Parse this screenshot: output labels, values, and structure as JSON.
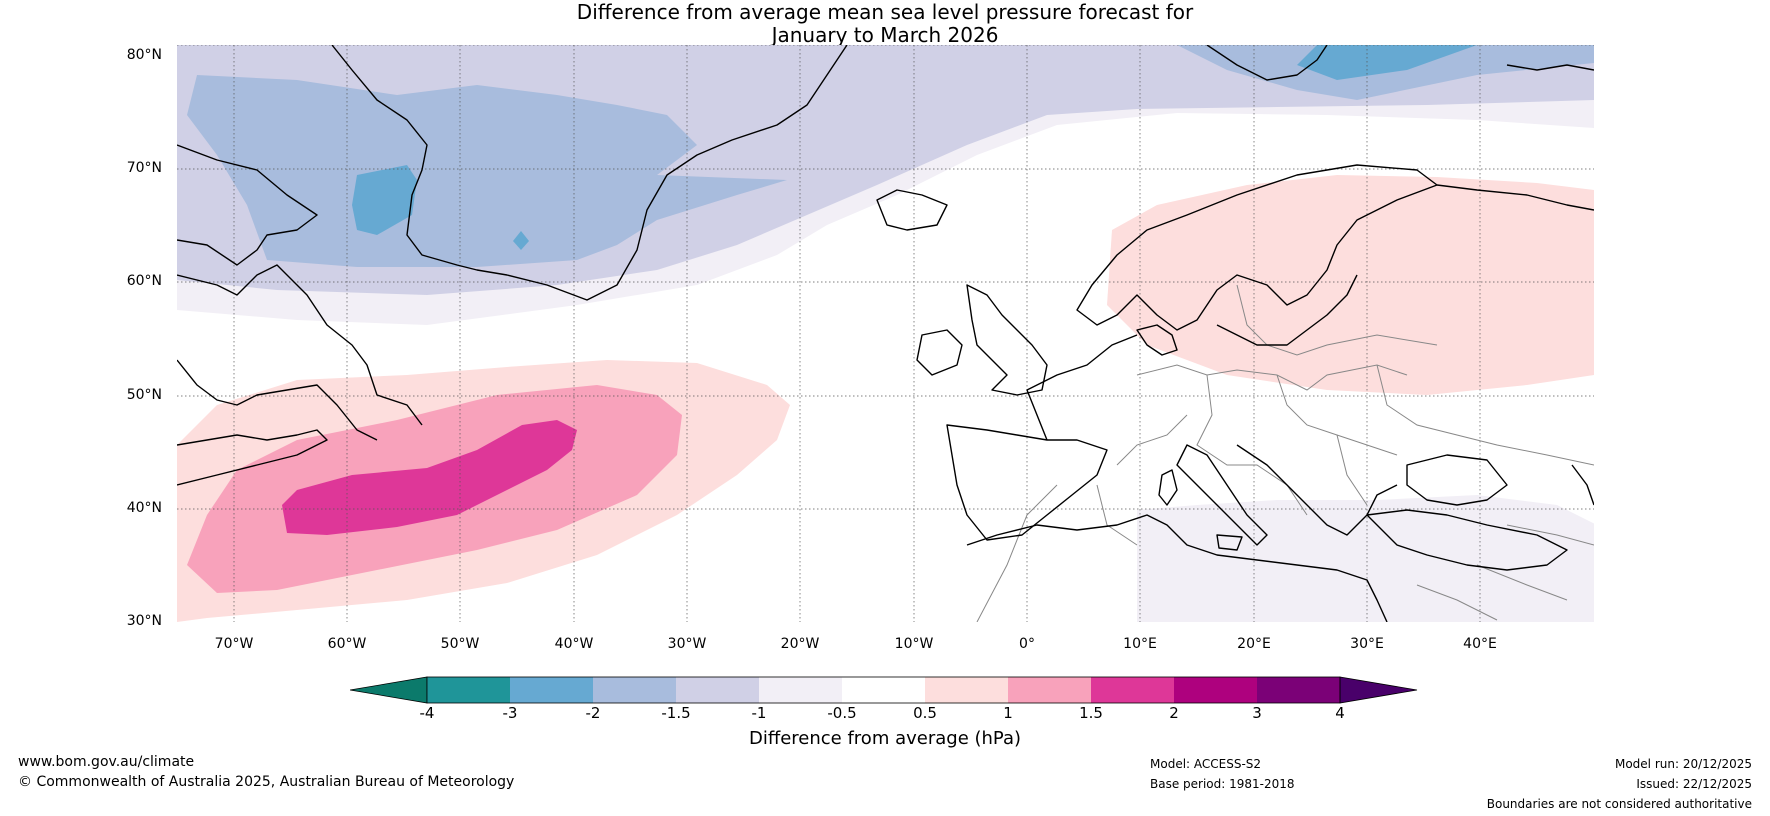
{
  "title": {
    "line1": "Difference from average mean sea level pressure forecast for",
    "line2": "January to March 2026"
  },
  "map": {
    "lat_ticks": [
      "80°N",
      "70°N",
      "60°N",
      "50°N",
      "40°N",
      "30°N"
    ],
    "lon_ticks": [
      "70°W",
      "60°W",
      "50°W",
      "40°W",
      "30°W",
      "20°W",
      "10°W",
      "0°",
      "10°E",
      "20°E",
      "30°E",
      "40°E"
    ],
    "lon_range": [
      -75,
      50
    ],
    "lat_range": [
      30,
      81
    ]
  },
  "colorbar": {
    "title": "Difference from average (hPa)",
    "ticks": [
      "-4",
      "-3",
      "-2",
      "-1.5",
      "-1",
      "-0.5",
      "0.5",
      "1",
      "1.5",
      "2",
      "3",
      "4"
    ],
    "colors": {
      "lt_minus4": "#0b7a6b",
      "m4_m3": "#1f9599",
      "m3_m2": "#66a9d2",
      "m2_m15": "#a8bcdd",
      "m15_m1": "#d0d0e6",
      "m1_m05": "#f2eff6",
      "m05_05": "#ffffff",
      "p05_1": "#fddedd",
      "p1_15": "#f8a2bb",
      "p15_2": "#de3798",
      "p2_3": "#ae017e",
      "p3_4": "#7b0177",
      "gt_4": "#49006a"
    }
  },
  "footer": {
    "website": "www.bom.gov.au/climate",
    "copyright": "© Commonwealth of Australia 2025, Australian Bureau of Meteorology",
    "model": "Model: ACCESS-S2",
    "base_period": "Base period: 1981-2018",
    "model_run": "Model run: 20/12/2025",
    "issued": "Issued: 22/12/2025",
    "disclaimer": "Boundaries are not considered authoritative"
  }
}
